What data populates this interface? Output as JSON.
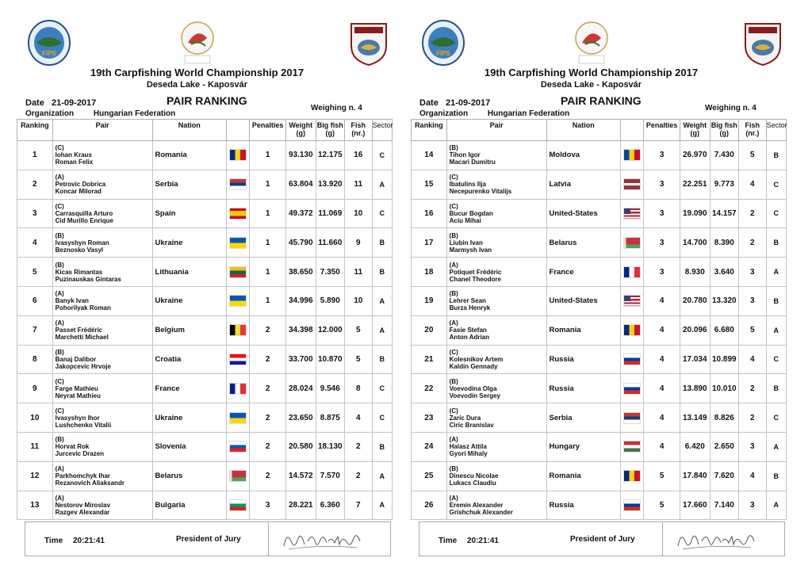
{
  "logos": {
    "fips": "FIPS",
    "center": "19th Carpfishing World Championship",
    "right": "MOHOSZ"
  },
  "header": {
    "title": "19th Carpfishing World Championship 2017",
    "subtitle": "Deseda Lake - Kaposvár",
    "date_label": "Date",
    "date_value": "21-09-2017",
    "ranking_title": "PAIR RANKING",
    "weighing": "Weighing n. 4",
    "org_label": "Organization",
    "org_value": "Hungarian Federation"
  },
  "columns": {
    "ranking": "Ranking",
    "pair": "Pair",
    "nation": "Nation",
    "penalties": "Penalties",
    "weight": "Weight",
    "weight_unit": "(g)",
    "bigfish": "Big fish",
    "bigfish_unit": "(g)",
    "fish": "Fish",
    "fish_unit": "(nr.)",
    "sector": "Sector"
  },
  "left_rows": [
    {
      "rank": "1",
      "sector_letter": "(C)",
      "p1": "Iohan Kraus",
      "p2": "Roman Felix",
      "nation": "Romania",
      "flag": "ro",
      "pen": "1",
      "weight": "93.130",
      "big": "12.175",
      "fish": "16",
      "sector": "C"
    },
    {
      "rank": "2",
      "sector_letter": "(A)",
      "p1": "Petrovic Dobrica",
      "p2": "Koncar Milorad",
      "nation": "Serbia",
      "flag": "rs",
      "pen": "1",
      "weight": "63.804",
      "big": "13.920",
      "fish": "11",
      "sector": "A"
    },
    {
      "rank": "3",
      "sector_letter": "(C)",
      "p1": "Carrasquilla Arturo",
      "p2": "Cid Murillo Enrique",
      "nation": "Spain",
      "flag": "es",
      "pen": "1",
      "weight": "49.372",
      "big": "11.069",
      "fish": "10",
      "sector": "C"
    },
    {
      "rank": "4",
      "sector_letter": "(B)",
      "p1": "Ivasyshyn Roman",
      "p2": "Beznosko Vasyl",
      "nation": "Ukraine",
      "flag": "ua",
      "pen": "1",
      "weight": "45.790",
      "big": "11.660",
      "fish": "9",
      "sector": "B"
    },
    {
      "rank": "5",
      "sector_letter": "(B)",
      "p1": "Kicas Rimantas",
      "p2": "Puzinauskas Gintaras",
      "nation": "Lithuania",
      "flag": "lt",
      "pen": "1",
      "weight": "38.650",
      "big": "7.350",
      "fish": "11",
      "sector": "B"
    },
    {
      "rank": "6",
      "sector_letter": "(A)",
      "p1": "Banyk Ivan",
      "p2": "Pohorilyak Roman",
      "nation": "Ukraine",
      "flag": "ua",
      "pen": "1",
      "weight": "34.996",
      "big": "5.890",
      "fish": "10",
      "sector": "A"
    },
    {
      "rank": "7",
      "sector_letter": "(A)",
      "p1": "Passet Frédéric",
      "p2": "Marchetti Michael",
      "nation": "Belgium",
      "flag": "be",
      "pen": "2",
      "weight": "34.398",
      "big": "12.000",
      "fish": "5",
      "sector": "A"
    },
    {
      "rank": "8",
      "sector_letter": "(B)",
      "p1": "Banaj Dalibor",
      "p2": "Jakopcevic Hrvoje",
      "nation": "Croatia",
      "flag": "hr",
      "pen": "2",
      "weight": "33.700",
      "big": "10.870",
      "fish": "5",
      "sector": "B"
    },
    {
      "rank": "9",
      "sector_letter": "(C)",
      "p1": "Farge Mathieu",
      "p2": "Neyrat Mathieu",
      "nation": "France",
      "flag": "fr",
      "pen": "2",
      "weight": "28.024",
      "big": "9.546",
      "fish": "8",
      "sector": "C"
    },
    {
      "rank": "10",
      "sector_letter": "(C)",
      "p1": "Ivasyshyn Ihor",
      "p2": "Lushchenko Vitalii",
      "nation": "Ukraine",
      "flag": "ua",
      "pen": "2",
      "weight": "23.650",
      "big": "8.875",
      "fish": "4",
      "sector": "C"
    },
    {
      "rank": "11",
      "sector_letter": "(B)",
      "p1": "Horvat Rok",
      "p2": "Jurcevic Drazen",
      "nation": "Slovenia",
      "flag": "si",
      "pen": "2",
      "weight": "20.580",
      "big": "18.130",
      "fish": "2",
      "sector": "B"
    },
    {
      "rank": "12",
      "sector_letter": "(A)",
      "p1": "Parkhomchyk Ihar",
      "p2": "Rezanovich Aliaksandr",
      "nation": "Belarus",
      "flag": "by",
      "pen": "2",
      "weight": "14.572",
      "big": "7.570",
      "fish": "2",
      "sector": "A"
    },
    {
      "rank": "13",
      "sector_letter": "(A)",
      "p1": "Nestorov Miroslav",
      "p2": "Razgev Alexandar",
      "nation": "Bulgaria",
      "flag": "bg",
      "pen": "3",
      "weight": "28.221",
      "big": "6.360",
      "fish": "7",
      "sector": "A"
    }
  ],
  "right_rows": [
    {
      "rank": "14",
      "sector_letter": "(B)",
      "p1": "Tihon Igor",
      "p2": "Macari Dumitru",
      "nation": "Moldova",
      "flag": "md",
      "pen": "3",
      "weight": "26.970",
      "big": "7.430",
      "fish": "5",
      "sector": "B"
    },
    {
      "rank": "15",
      "sector_letter": "(C)",
      "p1": "Ibatulins Ilja",
      "p2": "Necepurenko Vitalijs",
      "nation": "Latvia",
      "flag": "lv",
      "pen": "3",
      "weight": "22.251",
      "big": "9.773",
      "fish": "4",
      "sector": "C"
    },
    {
      "rank": "16",
      "sector_letter": "(C)",
      "p1": "Bucur Bogdan",
      "p2": "Aciu Mihai",
      "nation": "United-States",
      "flag": "us",
      "pen": "3",
      "weight": "19.090",
      "big": "14.157",
      "fish": "2",
      "sector": "C"
    },
    {
      "rank": "17",
      "sector_letter": "(B)",
      "p1": "Liubin Ivan",
      "p2": "Marmysh Ivan",
      "nation": "Belarus",
      "flag": "by",
      "pen": "3",
      "weight": "14.700",
      "big": "8.390",
      "fish": "2",
      "sector": "B"
    },
    {
      "rank": "18",
      "sector_letter": "(A)",
      "p1": "Potiquet Frédéric",
      "p2": "Chanel Theodore",
      "nation": "France",
      "flag": "fr",
      "pen": "3",
      "weight": "8.930",
      "big": "3.640",
      "fish": "3",
      "sector": "A"
    },
    {
      "rank": "19",
      "sector_letter": "(B)",
      "p1": "Lehrer Sean",
      "p2": "Burza Henryk",
      "nation": "United-States",
      "flag": "us",
      "pen": "4",
      "weight": "20.780",
      "big": "13.320",
      "fish": "3",
      "sector": "B"
    },
    {
      "rank": "20",
      "sector_letter": "(A)",
      "p1": "Fasie Stefan",
      "p2": "Anton Adrian",
      "nation": "Romania",
      "flag": "ro",
      "pen": "4",
      "weight": "20.096",
      "big": "6.680",
      "fish": "5",
      "sector": "A"
    },
    {
      "rank": "21",
      "sector_letter": "(C)",
      "p1": "Kolesnikov Artem",
      "p2": "Kaldin Gennady",
      "nation": "Russia",
      "flag": "ru",
      "pen": "4",
      "weight": "17.034",
      "big": "10.899",
      "fish": "4",
      "sector": "C"
    },
    {
      "rank": "22",
      "sector_letter": "(B)",
      "p1": "Voevodina Olga",
      "p2": "Voevodin Sergey",
      "nation": "Russia",
      "flag": "ru",
      "pen": "4",
      "weight": "13.890",
      "big": "10.010",
      "fish": "2",
      "sector": "B"
    },
    {
      "rank": "23",
      "sector_letter": "(C)",
      "p1": "Zaric Dura",
      "p2": "Ciric Branislav",
      "nation": "Serbia",
      "flag": "rs",
      "pen": "4",
      "weight": "13.149",
      "big": "8.826",
      "fish": "2",
      "sector": "C"
    },
    {
      "rank": "24",
      "sector_letter": "(A)",
      "p1": "Halasz Attila",
      "p2": "Gyori Mihaly",
      "nation": "Hungary",
      "flag": "hu",
      "pen": "4",
      "weight": "6.420",
      "big": "2.650",
      "fish": "3",
      "sector": "A"
    },
    {
      "rank": "25",
      "sector_letter": "(B)",
      "p1": "Dinescu Nicolae",
      "p2": "Lukacs Claudiu",
      "nation": "Romania",
      "flag": "ro",
      "pen": "5",
      "weight": "17.840",
      "big": "7.620",
      "fish": "4",
      "sector": "B"
    },
    {
      "rank": "26",
      "sector_letter": "(A)",
      "p1": "Eremin Alexander",
      "p2": "Grishchuk Alexander",
      "nation": "Russia",
      "flag": "ru",
      "pen": "5",
      "weight": "17.660",
      "big": "7.140",
      "fish": "3",
      "sector": "A"
    }
  ],
  "footer": {
    "time_label": "Time",
    "time_value": "20:21:41",
    "president": "President of Jury"
  }
}
